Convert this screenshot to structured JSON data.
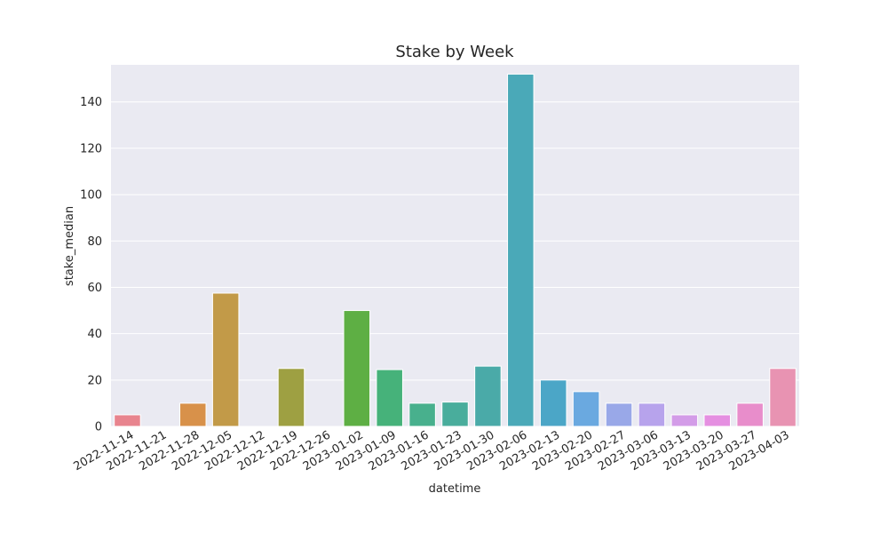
{
  "chart_data": {
    "type": "bar",
    "title": "Stake by Week",
    "xlabel": "datetime",
    "ylabel": "stake_median",
    "ylim": [
      0,
      156
    ],
    "yticks": [
      0,
      20,
      40,
      60,
      80,
      100,
      120,
      140
    ],
    "grid": true,
    "categories": [
      "2022-11-14",
      "2022-11-21",
      "2022-11-28",
      "2022-12-05",
      "2022-12-12",
      "2022-12-19",
      "2022-12-26",
      "2023-01-02",
      "2023-01-09",
      "2023-01-16",
      "2023-01-23",
      "2023-01-30",
      "2023-02-06",
      "2023-02-13",
      "2023-02-20",
      "2023-02-27",
      "2023-03-06",
      "2023-03-13",
      "2023-03-20",
      "2023-03-27",
      "2023-04-03"
    ],
    "values": [
      5,
      0,
      10,
      57.5,
      0,
      25,
      0,
      50,
      24.5,
      10,
      10.5,
      26,
      152,
      20,
      15,
      10,
      10,
      5,
      5,
      10,
      25
    ],
    "colors": [
      "#e8848e",
      "#e48b5f",
      "#d8914a",
      "#c29a48",
      "#b09c42",
      "#9ea042",
      "#7fa83f",
      "#5eaf44",
      "#46b27a",
      "#48b08d",
      "#49ad9c",
      "#4aaaa8",
      "#4aa9b8",
      "#4ba6c7",
      "#6aa9e0",
      "#99a8e8",
      "#b7a3ec",
      "#d39ce8",
      "#e58fe1",
      "#e88dcb",
      "#e893b2"
    ],
    "background": "#eaeaf2",
    "grid_color": "#ffffff"
  }
}
